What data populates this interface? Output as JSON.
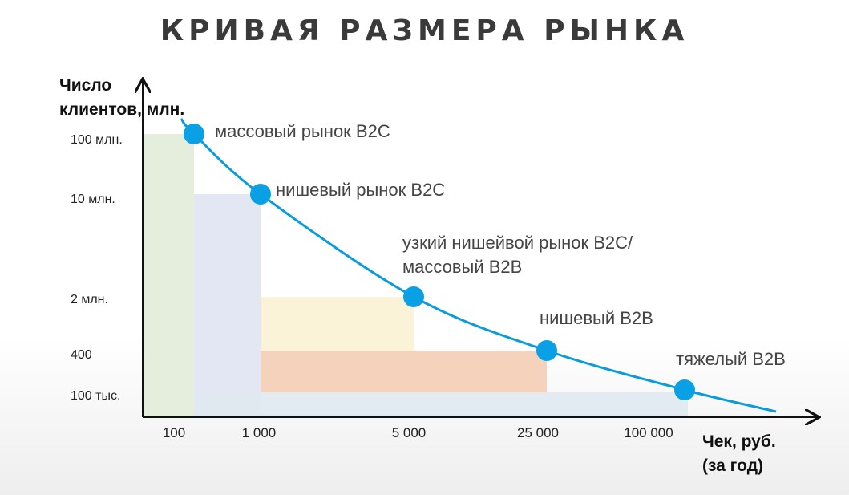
{
  "chart_data": {
    "type": "line",
    "title": "КРИВАЯ РАЗМЕРА РЫНКА",
    "ylabel": "Число\nклиентов, млн.",
    "xlabel": "Чек, руб.\n(за год)",
    "x_ticks": [
      "100",
      "1 000",
      "5 000",
      "25 000",
      "100 000"
    ],
    "y_ticks": [
      "100 млн.",
      "10 млн.",
      "2 млн.",
      "400",
      "100 тыс."
    ],
    "points": [
      {
        "x": "100",
        "y": "100 млн.",
        "label": "массовый рынок B2C"
      },
      {
        "x": "1 000",
        "y": "10 млн.",
        "label": "нишевый рынок B2C"
      },
      {
        "x": "5 000",
        "y": "2 млн.",
        "label": "узкий нишейвой рынок B2C/\nмассовый B2B"
      },
      {
        "x": "25 000",
        "y": "400",
        "label": "нишевый B2B"
      },
      {
        "x": "100 000",
        "y": "100 тыс.",
        "label": "тяжелый B2B"
      }
    ],
    "curve_color": "#0a9bdc",
    "point_color": "#0aa0e6",
    "region_colors": [
      "#e2ecd9",
      "#e0e3f2",
      "#fbf2d4",
      "#f3cdb4",
      "#dfe9f0"
    ],
    "grid": false
  }
}
